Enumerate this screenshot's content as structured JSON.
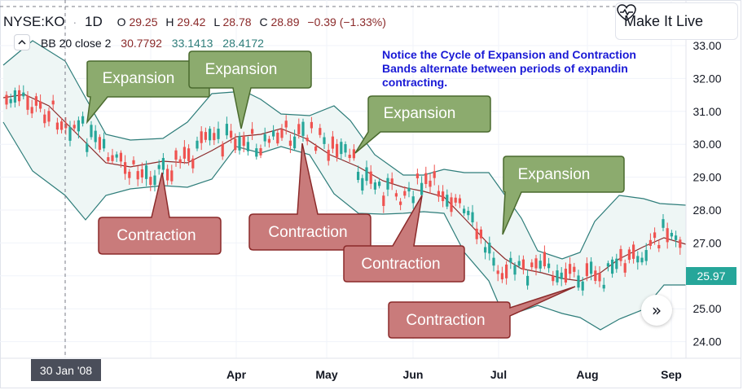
{
  "header": {
    "symbol": "NYSE:KO",
    "interval": "1D",
    "open_label": "O",
    "open": "29.25",
    "high_label": "H",
    "high": "29.42",
    "low_label": "L",
    "low": "28.78",
    "close_label": "C",
    "close": "28.89",
    "change": "−0.39 (−1.33%)"
  },
  "indicator": {
    "name": "BB 20 close 2",
    "basis": "30.7792",
    "upper": "33.1413",
    "lower": "28.4172"
  },
  "live_button": {
    "label": "Make It Live",
    "icon": "heart-pulse-icon"
  },
  "note_lines": [
    "Notice the Cycle of Expansion and Contraction",
    "Bands alternate between periods of expandin",
    "contracting."
  ],
  "colors": {
    "up_candle": "#26a69a",
    "down_candle": "#ef5350",
    "basis": "#8b2a2a",
    "bands": "#2e7d7a",
    "band_fill": "#eef6f5",
    "expansion_box": "#8cab6e",
    "contraction_box": "#c97b7b",
    "note_text": "#1a1ad6",
    "price_label_bg": "#26a69a"
  },
  "callouts": {
    "expansion": [
      "Expansion",
      "Expansion",
      "Expansion",
      "Expansion"
    ],
    "contraction": [
      "Contraction",
      "Contraction",
      "Contraction",
      "Contraction"
    ]
  },
  "crosshair_date": "30 Jan '08",
  "current_price": "25.97",
  "chart_data": {
    "type": "candlestick",
    "y_ticks": [
      "33.00",
      "32.00",
      "31.00",
      "30.00",
      "29.00",
      "28.00",
      "27.00",
      "26.00",
      "25.00",
      "24.00"
    ],
    "x_ticks": [
      "Apr",
      "May",
      "Jun",
      "Jul",
      "Aug",
      "Sep"
    ],
    "ylim": [
      23.5,
      33.3
    ],
    "log_scale": false,
    "grid": true
  }
}
